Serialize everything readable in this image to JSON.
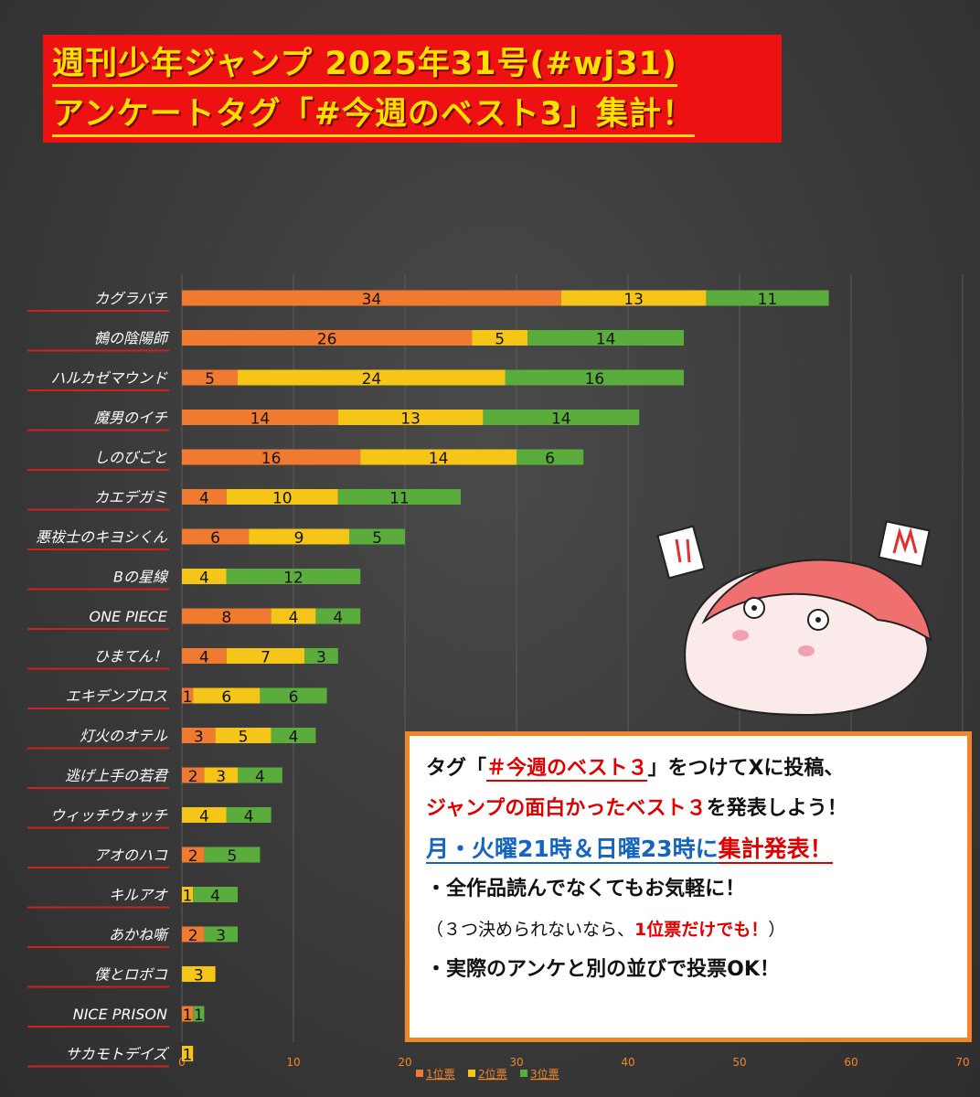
{
  "title": {
    "line1": "週刊少年ジャンプ 2025年31号(#wj31)",
    "line2": "アンケートタグ「#今週のベスト3」集計！"
  },
  "chart_data": {
    "type": "bar",
    "orientation": "horizontal",
    "stacked": true,
    "categories": [
      "カグラバチ",
      "鵺の陰陽師",
      "ハルカゼマウンド",
      "魔男のイチ",
      "しのびごと",
      "カエデガミ",
      "悪祓士のキヨシくん",
      "Bの星線",
      "ONE PIECE",
      "ひまてん！",
      "エキデンブロス",
      "灯火のオテル",
      "逃げ上手の若君",
      "ウィッチウォッチ",
      "アオのハコ",
      "キルアオ",
      "あかね噺",
      "僕とロボコ",
      "NICE PRISON",
      "サカモトデイズ"
    ],
    "series": [
      {
        "name": "1位票",
        "color": "#f07a30",
        "values": [
          34,
          26,
          5,
          14,
          16,
          4,
          6,
          0,
          8,
          4,
          1,
          3,
          2,
          0,
          2,
          0,
          2,
          0,
          1,
          0
        ]
      },
      {
        "name": "2位票",
        "color": "#f5c518",
        "values": [
          13,
          5,
          24,
          13,
          14,
          10,
          9,
          4,
          4,
          7,
          6,
          5,
          3,
          4,
          0,
          1,
          0,
          3,
          0,
          1
        ]
      },
      {
        "name": "3位票",
        "color": "#5aad3c",
        "values": [
          11,
          14,
          16,
          14,
          6,
          11,
          5,
          12,
          4,
          3,
          6,
          4,
          4,
          4,
          5,
          4,
          3,
          0,
          1,
          0
        ]
      }
    ],
    "xlim": [
      0,
      70
    ],
    "xticks": [
      0,
      10,
      20,
      30,
      40,
      50,
      60,
      70
    ],
    "legend_position": "bottom",
    "grid": true
  },
  "info": {
    "l1_a": "タグ「",
    "l1_tag": "＃今週のベスト３",
    "l1_b": "」をつけてXに投稿、",
    "l2_a": "ジャンプの面白かったベスト３",
    "l2_b": "を発表しよう！",
    "l3_a": "月・火曜21時＆日曜23時に",
    "l3_b": "集計発表！",
    "l4": "・全作品読んでなくてもお気軽に！",
    "l5_a": "（３つ決められないなら、",
    "l5_b": "1位票だけでも！",
    "l5_c": "）",
    "l6": "・実際のアンケと別の並びで投票OK！"
  }
}
